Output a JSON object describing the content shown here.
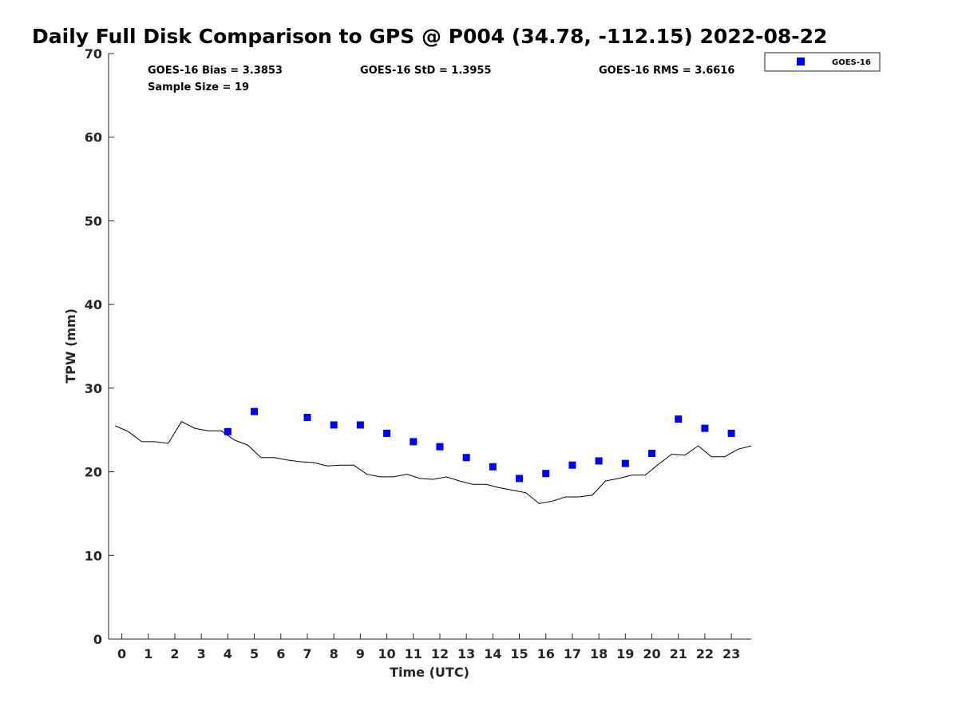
{
  "chart_data": {
    "type": "scatter",
    "title": "Daily Full Disk Comparison to GPS @ P004 (34.78, -112.15) 2022-08-22",
    "xlabel": "Time (UTC)",
    "ylabel": "TPW (mm)",
    "xlim": [
      -0.5,
      23.75
    ],
    "ylim": [
      0,
      70
    ],
    "xticks": [
      0,
      1,
      2,
      3,
      4,
      5,
      6,
      7,
      8,
      9,
      10,
      11,
      12,
      13,
      14,
      15,
      16,
      17,
      18,
      19,
      20,
      21,
      22,
      23
    ],
    "yticks": [
      0,
      10,
      20,
      30,
      40,
      50,
      60,
      70
    ],
    "grid": false,
    "legend_position": "outside-top-right",
    "stats": {
      "bias": "GOES-16 Bias = 3.3853",
      "std": "GOES-16 StD = 1.3955",
      "rms": "GOES-16 RMS = 3.6616",
      "sample_size": "Sample Size = 19"
    },
    "series": [
      {
        "name": "GOES-16",
        "kind": "markers",
        "marker": "square",
        "color": "#0000ff",
        "x": [
          4,
          5,
          7,
          8,
          9,
          10,
          11,
          12,
          13,
          14,
          15,
          16,
          17,
          18,
          19,
          20,
          21,
          22,
          23
        ],
        "y": [
          24.8,
          27.2,
          26.5,
          25.6,
          25.6,
          24.6,
          23.6,
          23.0,
          21.7,
          20.6,
          19.2,
          19.8,
          20.8,
          21.3,
          21.0,
          22.2,
          26.3,
          25.2,
          24.6
        ]
      },
      {
        "kind": "line",
        "color": "#000000",
        "x": [
          -0.25,
          0.25,
          0.75,
          1.25,
          1.75,
          2.25,
          2.75,
          3.25,
          3.75,
          4.25,
          4.75,
          5.25,
          5.75,
          6.25,
          6.75,
          7.25,
          7.75,
          8.25,
          8.75,
          9.25,
          9.75,
          10.25,
          10.75,
          11.25,
          11.75,
          12.25,
          12.75,
          13.25,
          13.75,
          14.25,
          14.75,
          15.25,
          15.75,
          16.25,
          16.75,
          17.25,
          17.75,
          18.25,
          18.75,
          19.25,
          19.75,
          20.25,
          20.75,
          21.25,
          21.75,
          22.25,
          22.75,
          23.25,
          23.75
        ],
        "y": [
          25.5,
          24.8,
          23.6,
          23.6,
          23.4,
          26.0,
          25.2,
          24.9,
          24.9,
          23.8,
          23.2,
          21.7,
          21.7,
          21.4,
          21.2,
          21.1,
          20.7,
          20.8,
          20.8,
          19.7,
          19.4,
          19.4,
          19.7,
          19.2,
          19.1,
          19.4,
          18.9,
          18.5,
          18.5,
          18.1,
          17.8,
          17.5,
          16.2,
          16.5,
          17.0,
          17.0,
          17.2,
          18.9,
          19.2,
          19.6,
          19.6,
          20.9,
          22.1,
          22.0,
          23.1,
          21.8,
          21.8,
          22.7,
          23.1
        ]
      }
    ]
  }
}
